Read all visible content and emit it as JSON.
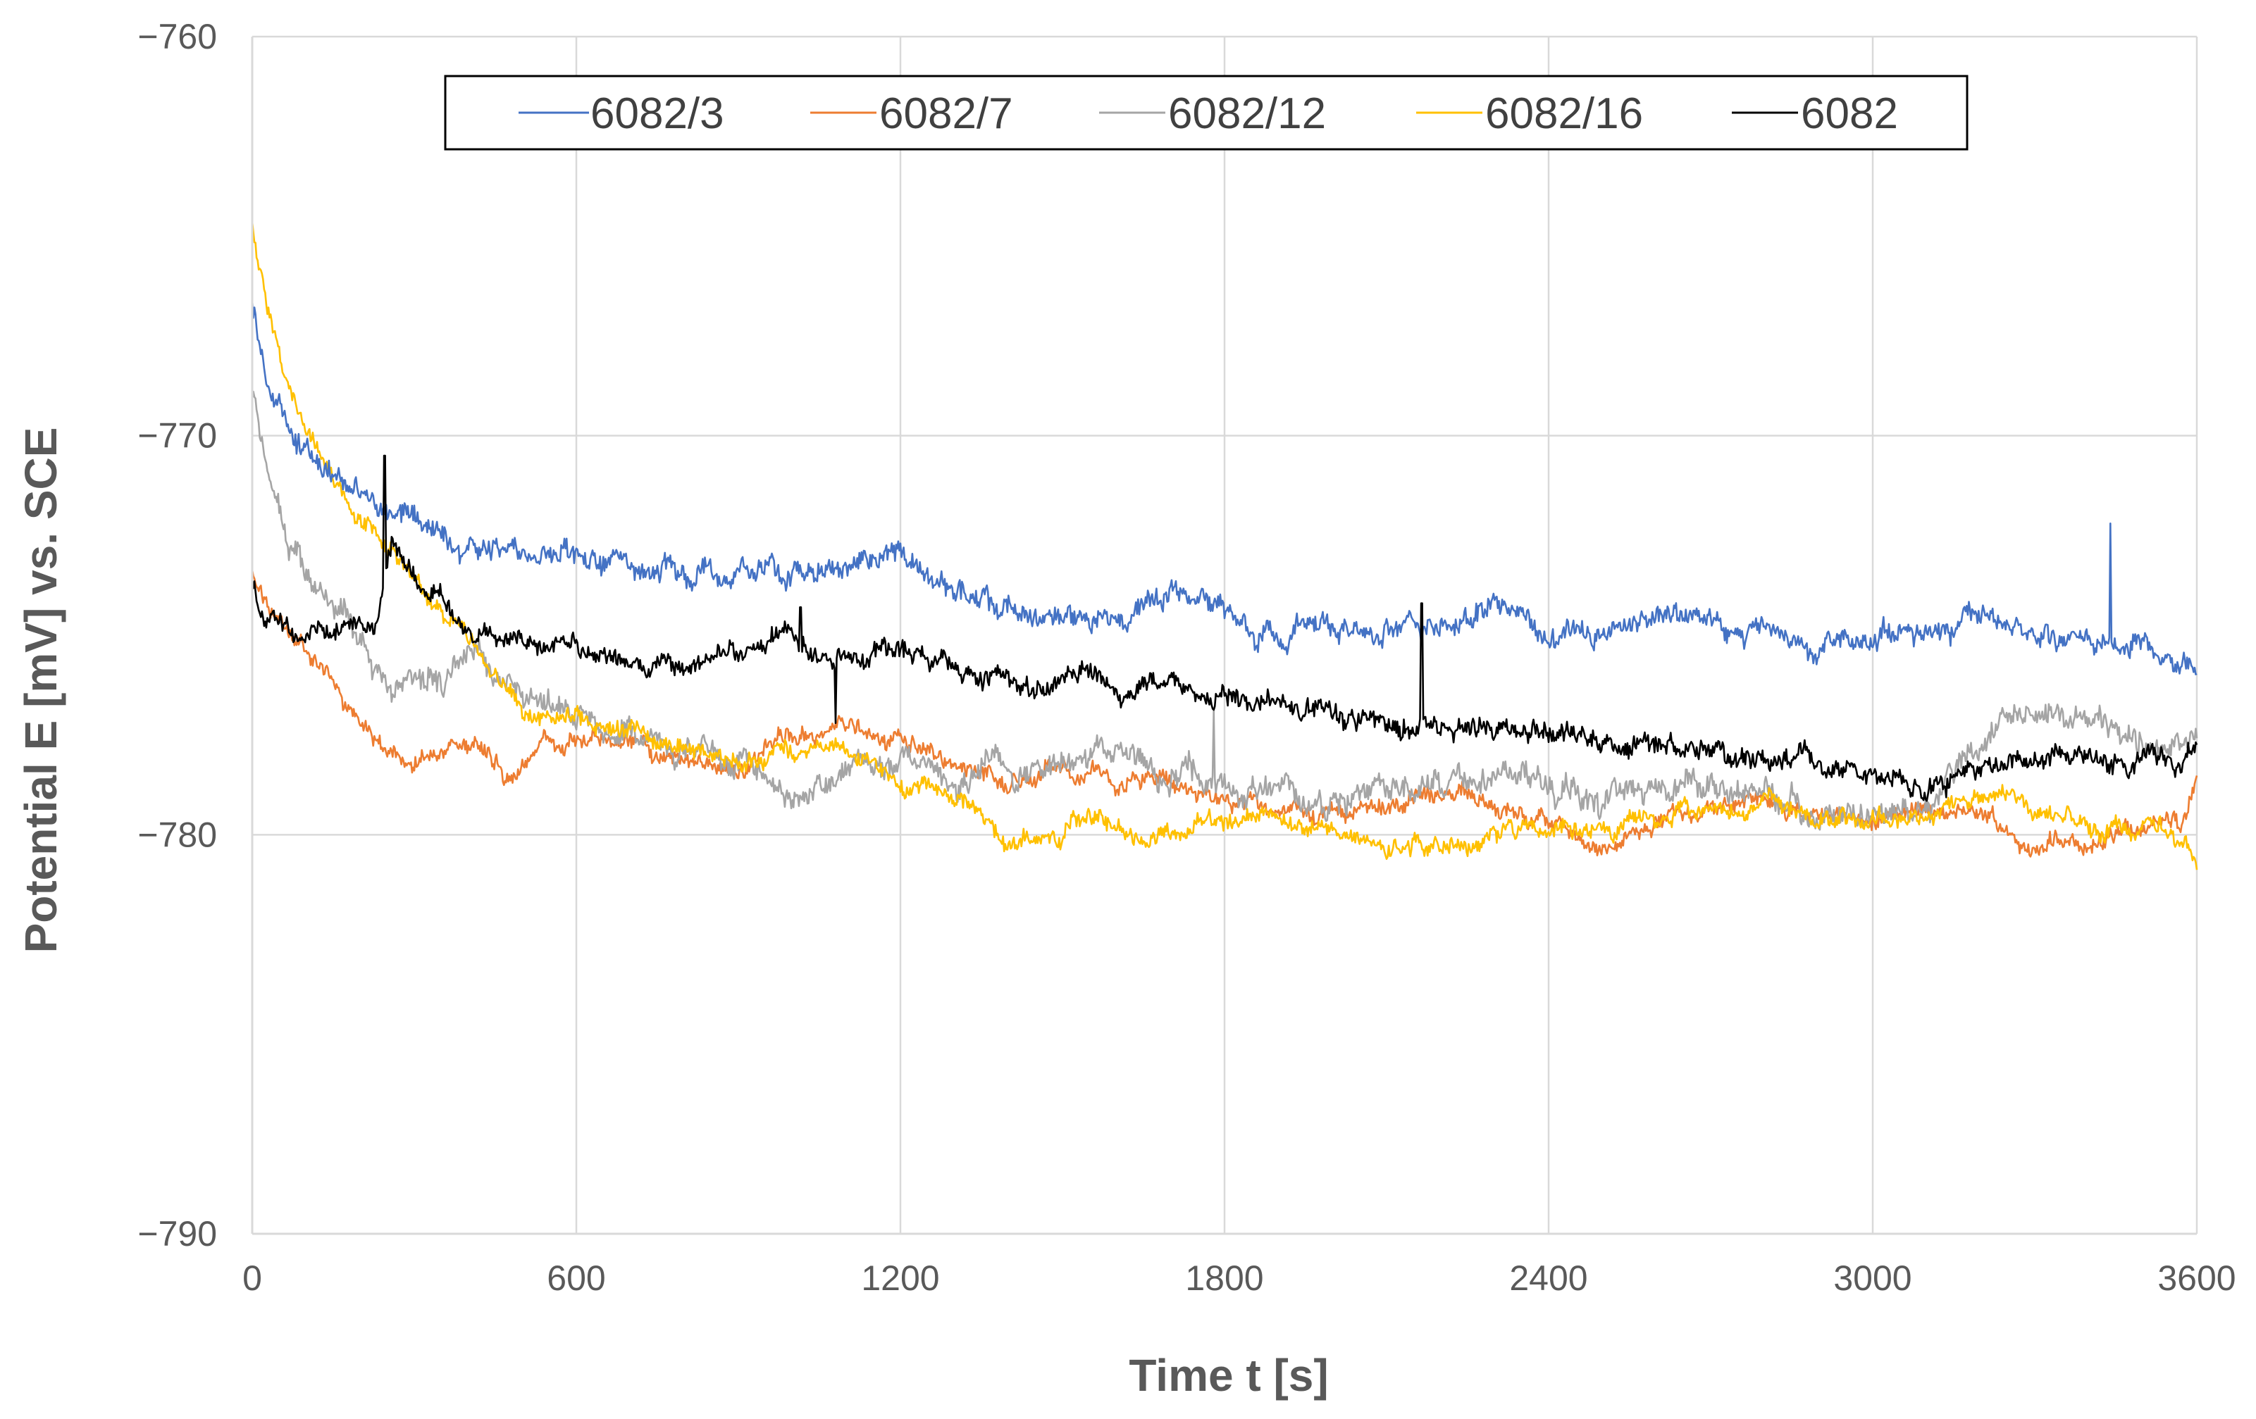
{
  "chart_data": {
    "type": "line",
    "title": "",
    "xlabel": "Time t [s]",
    "ylabel": "Potential E [mV] vs. SCE",
    "xlim": [
      0,
      3600
    ],
    "ylim": [
      -790,
      -760
    ],
    "xticks": [
      0,
      600,
      1200,
      1800,
      2400,
      3000,
      3600
    ],
    "yticks": [
      -760,
      -770,
      -780,
      -790
    ],
    "xtick_labels": [
      "0",
      "600",
      "1200",
      "1800",
      "2400",
      "3000",
      "3600"
    ],
    "ytick_labels": [
      "−760",
      "−770",
      "−780",
      "−790"
    ],
    "grid": true,
    "legend_position": "top-center",
    "series": [
      {
        "name": "6082/3",
        "color": "#4472C4",
        "noise": 0.45,
        "x": [
          0,
          20,
          60,
          120,
          200,
          300,
          400,
          500,
          600,
          800,
          1000,
          1200,
          1300,
          1400,
          1500,
          1600,
          1700,
          1800,
          1900,
          2000,
          2100,
          2200,
          2300,
          2400,
          2500,
          2600,
          2700,
          2800,
          2900,
          3000,
          3100,
          3200,
          3300,
          3400,
          3500,
          3580,
          3600
        ],
        "y": [
          -766.5,
          -768.2,
          -769.5,
          -770.6,
          -771.5,
          -772.1,
          -772.7,
          -773.0,
          -773.1,
          -773.3,
          -773.6,
          -772.9,
          -773.8,
          -774.3,
          -774.5,
          -774.7,
          -773.8,
          -774.2,
          -775.0,
          -774.6,
          -774.8,
          -774.6,
          -774.3,
          -774.9,
          -774.9,
          -774.5,
          -774.6,
          -774.8,
          -775.3,
          -775.0,
          -774.8,
          -774.6,
          -774.9,
          -775.2,
          -775.1,
          -775.7,
          -775.8
        ]
      },
      {
        "name": "6082/7",
        "color": "#ED7D31",
        "noise": 0.35,
        "x": [
          0,
          30,
          60,
          100,
          160,
          220,
          260,
          300,
          400,
          480,
          540,
          600,
          700,
          800,
          900,
          1000,
          1100,
          1200,
          1300,
          1400,
          1500,
          1600,
          1700,
          1800,
          1900,
          2000,
          2100,
          2200,
          2300,
          2400,
          2500,
          2600,
          2700,
          2800,
          2900,
          3000,
          3100,
          3200,
          3300,
          3400,
          3500,
          3580,
          3600
        ],
        "y": [
          -773.5,
          -774.3,
          -775.0,
          -775.5,
          -776.4,
          -777.5,
          -778.0,
          -778.2,
          -777.6,
          -778.5,
          -777.8,
          -777.6,
          -777.7,
          -778.4,
          -778.3,
          -777.5,
          -777.2,
          -777.7,
          -778.5,
          -778.8,
          -778.2,
          -778.7,
          -778.7,
          -779.2,
          -779.3,
          -779.5,
          -779.2,
          -779.0,
          -779.2,
          -779.6,
          -780.1,
          -779.7,
          -779.4,
          -779.1,
          -779.2,
          -779.6,
          -779.5,
          -779.4,
          -780.2,
          -780.3,
          -780.0,
          -779.8,
          -778.7
        ]
      },
      {
        "name": "6082/12",
        "color": "#A5A5A5",
        "noise": 0.5,
        "x": [
          0,
          20,
          50,
          80,
          120,
          200,
          260,
          300,
          400,
          500,
          600,
          700,
          800,
          900,
          1000,
          1100,
          1200,
          1300,
          1400,
          1500,
          1600,
          1700,
          1800,
          1900,
          2000,
          2100,
          2200,
          2300,
          2400,
          2500,
          2600,
          2700,
          2800,
          2900,
          3000,
          3100,
          3200,
          3250,
          3300,
          3400,
          3500,
          3580,
          3600
        ],
        "y": [
          -768.8,
          -770.3,
          -772.0,
          -773.0,
          -773.8,
          -775.2,
          -776.5,
          -776.0,
          -775.6,
          -776.3,
          -777.0,
          -777.2,
          -777.8,
          -778.3,
          -779.0,
          -778.4,
          -778.0,
          -778.5,
          -778.2,
          -778.3,
          -778.0,
          -778.4,
          -778.8,
          -779.0,
          -779.1,
          -778.8,
          -778.9,
          -778.4,
          -778.8,
          -779.1,
          -778.9,
          -778.8,
          -779.1,
          -779.4,
          -779.8,
          -779.2,
          -778.0,
          -776.8,
          -776.9,
          -777.5,
          -777.7,
          -778.0,
          -777.6
        ]
      },
      {
        "name": "6082/16",
        "color": "#FFC000",
        "noise": 0.35,
        "x": [
          0,
          10,
          30,
          60,
          100,
          150,
          200,
          260,
          320,
          400,
          450,
          500,
          600,
          700,
          800,
          900,
          1000,
          1100,
          1200,
          1300,
          1350,
          1400,
          1500,
          1600,
          1700,
          1800,
          1900,
          2000,
          2100,
          2200,
          2300,
          2400,
          2500,
          2600,
          2700,
          2800,
          2900,
          3000,
          3100,
          3200,
          3300,
          3400,
          3500,
          3580,
          3600
        ],
        "y": [
          -764.5,
          -765.8,
          -767.0,
          -768.5,
          -770.0,
          -771.2,
          -772.1,
          -773.0,
          -774.0,
          -775.2,
          -775.9,
          -777.0,
          -777.2,
          -777.4,
          -777.8,
          -778.3,
          -778.1,
          -777.9,
          -778.5,
          -779.2,
          -779.6,
          -780.2,
          -779.8,
          -779.6,
          -780.0,
          -779.8,
          -779.7,
          -779.9,
          -780.2,
          -780.3,
          -780.0,
          -779.8,
          -779.8,
          -779.6,
          -779.4,
          -779.2,
          -779.4,
          -779.7,
          -779.5,
          -779.0,
          -779.3,
          -779.8,
          -779.9,
          -780.2,
          -780.7
        ]
      },
      {
        "name": "6082",
        "color": "#000000",
        "noise": 0.4,
        "x": [
          0,
          20,
          60,
          100,
          150,
          200,
          230,
          260,
          300,
          400,
          500,
          600,
          700,
          800,
          900,
          1000,
          1100,
          1200,
          1300,
          1400,
          1500,
          1600,
          1700,
          1800,
          1900,
          2000,
          2100,
          2200,
          2300,
          2400,
          2500,
          2600,
          2700,
          2800,
          2900,
          3000,
          3100,
          3200,
          3300,
          3400,
          3500,
          3580,
          3600
        ],
        "y": [
          -773.5,
          -774.4,
          -774.8,
          -775.0,
          -774.8,
          -774.7,
          -774.5,
          -772.5,
          -773.5,
          -774.8,
          -775.0,
          -775.3,
          -775.6,
          -775.7,
          -775.4,
          -775.2,
          -775.3,
          -775.5,
          -775.8,
          -776.1,
          -776.3,
          -776.2,
          -776.3,
          -776.6,
          -776.8,
          -777.0,
          -777.2,
          -777.4,
          -777.3,
          -777.5,
          -777.8,
          -777.7,
          -777.9,
          -778.1,
          -778.2,
          -778.5,
          -778.7,
          -778.3,
          -778.0,
          -778.2,
          -778.3,
          -778.1,
          -777.8
        ]
      }
    ],
    "spikes": [
      {
        "series": "6082",
        "x": 245,
        "y": -770.5
      },
      {
        "series": "6082",
        "x": 1015,
        "y": -774.3
      },
      {
        "series": "6082",
        "x": 1080,
        "y": -777.2
      },
      {
        "series": "6082",
        "x": 2165,
        "y": -774.2
      },
      {
        "series": "6082/12",
        "x": 1780,
        "y": -776.9
      },
      {
        "series": "6082/3",
        "x": 3440,
        "y": -772.2
      }
    ]
  }
}
